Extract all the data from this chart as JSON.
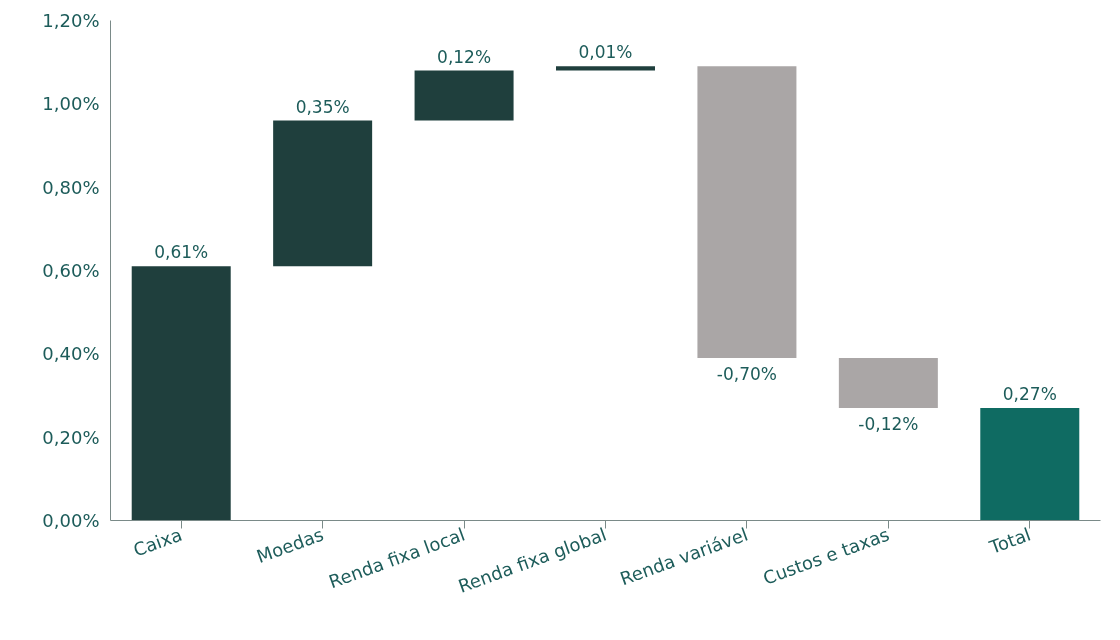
{
  "chart_data": {
    "type": "bar",
    "categories": [
      "Caixa",
      "Moedas",
      "Renda fixa local",
      "Renda fixa global",
      "Renda variável",
      "Custos e taxas",
      "Total"
    ],
    "values": [
      0.61,
      0.35,
      0.12,
      0.01,
      -0.7,
      -0.12,
      0.27
    ],
    "base": [
      0,
      0.61,
      0.96,
      1.08,
      1.09,
      0.39,
      0
    ],
    "colors": [
      "#1f3f3d",
      "#1f3f3d",
      "#1f3f3d",
      "#1f3f3d",
      "#aaa6a6",
      "#aaa6a6",
      "#0f6b62"
    ],
    "value_labels": [
      "0,61%",
      "0,35%",
      "0,12%",
      "0,01%",
      "-0,70%",
      "-0,12%",
      "0,27%"
    ],
    "ylim": [
      0,
      1.2
    ],
    "yticks": [
      {
        "value": 0,
        "label": "0,00%"
      },
      {
        "value": 0.2,
        "label": "0,20%"
      },
      {
        "value": 0.4,
        "label": "0,40%"
      },
      {
        "value": 0.6,
        "label": "0,60%"
      },
      {
        "value": 0.8,
        "label": "0,80%"
      },
      {
        "value": 1.0,
        "label": "1,00%"
      },
      {
        "value": 1.2,
        "label": "1,20%"
      }
    ],
    "grid": false
  }
}
